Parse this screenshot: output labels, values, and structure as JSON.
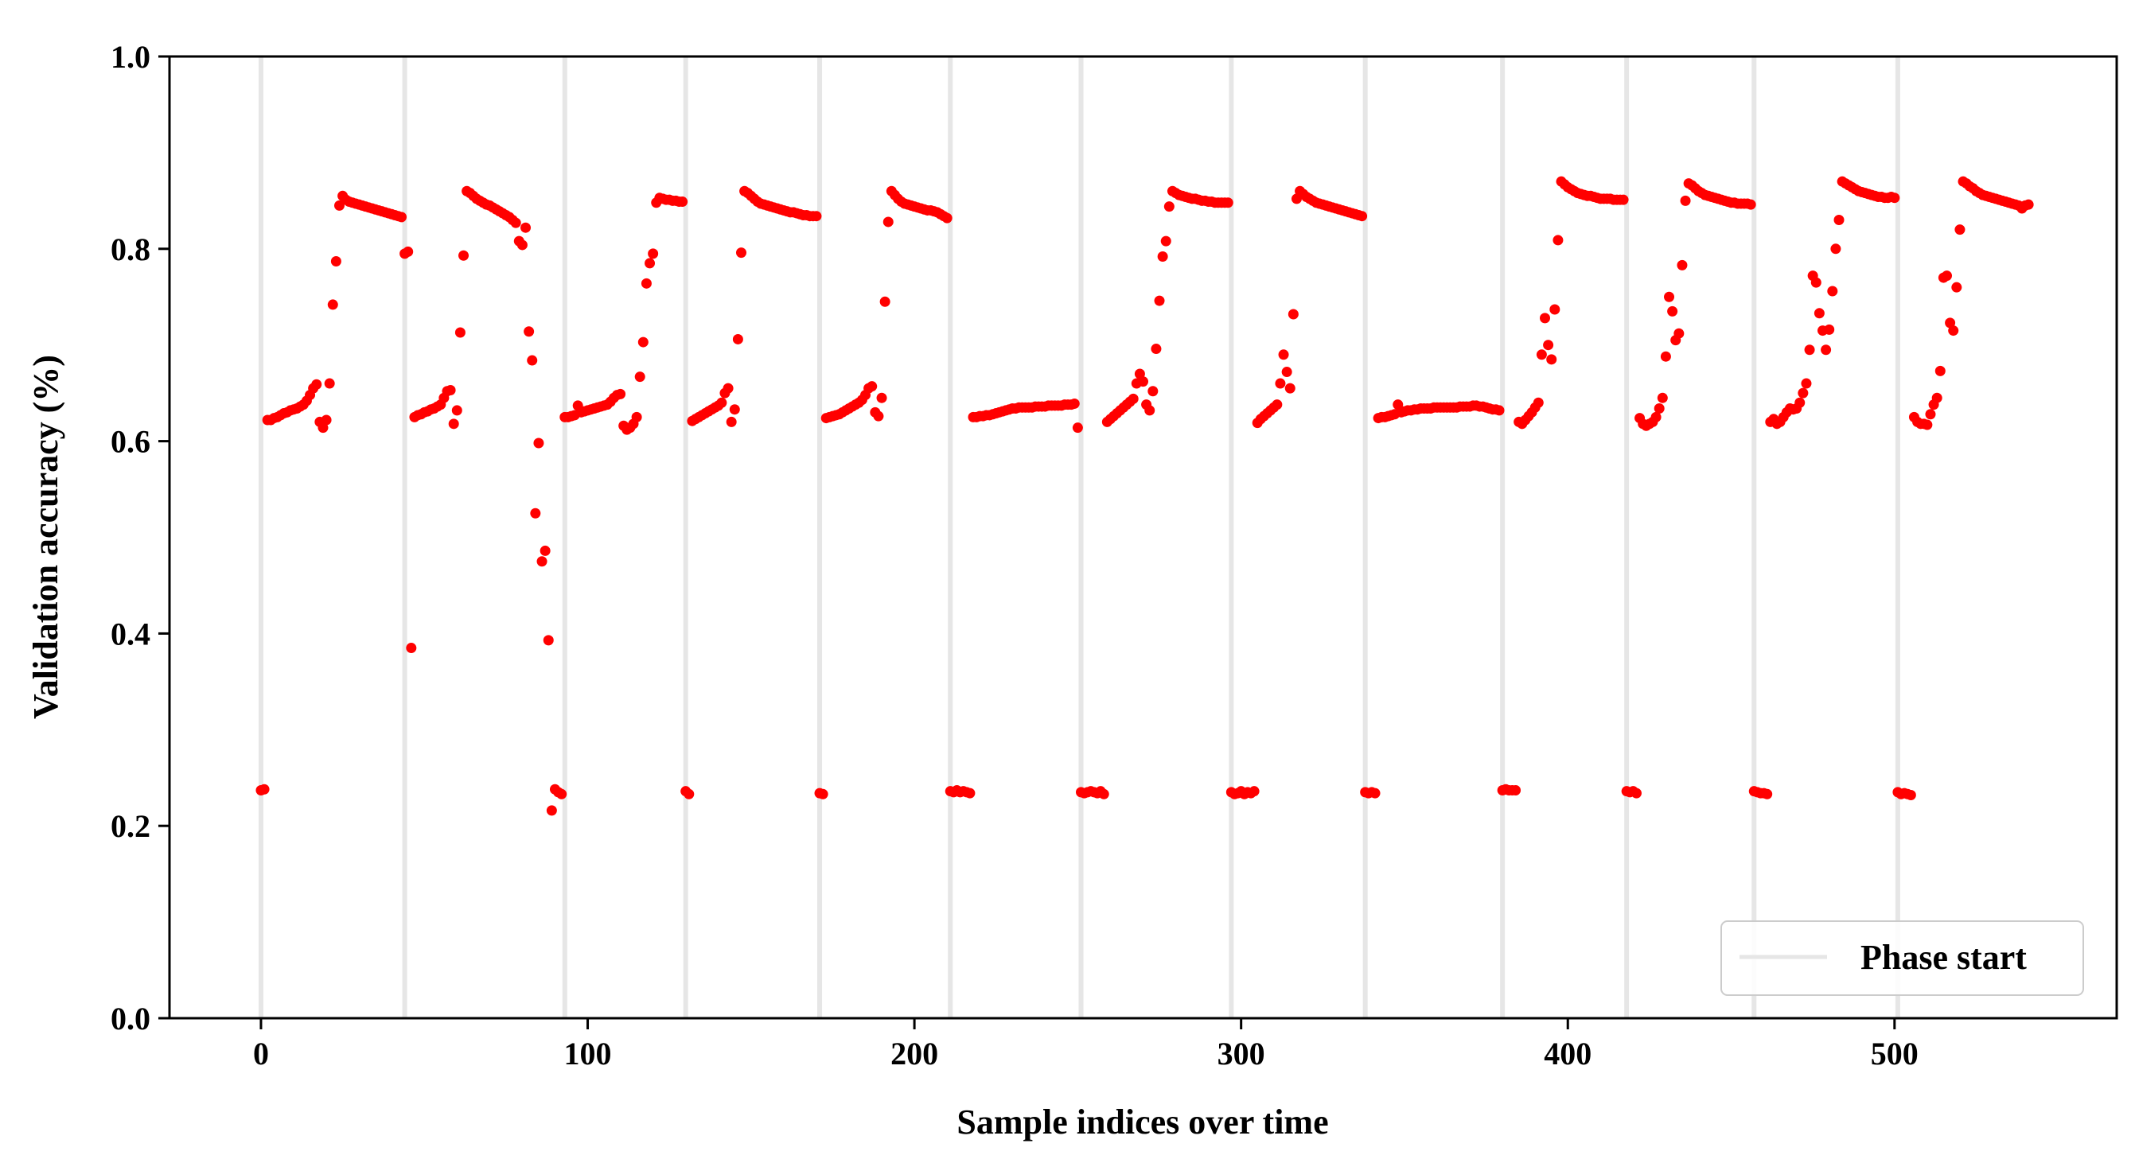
{
  "chart_data": {
    "type": "scatter",
    "xlabel": "Sample indices over time",
    "ylabel": "Validation accuracy (%)",
    "xlim": [
      -28,
      568
    ],
    "ylim": [
      0.0,
      1.0
    ],
    "xticks": [
      0,
      100,
      200,
      300,
      400,
      500
    ],
    "yticks": [
      0.0,
      0.2,
      0.4,
      0.6,
      0.8,
      1.0
    ],
    "xtick_labels": [
      "0",
      "100",
      "200",
      "300",
      "400",
      "500"
    ],
    "ytick_labels": [
      "0.0",
      "0.2",
      "0.4",
      "0.6",
      "0.8",
      "1.0"
    ],
    "grid": false,
    "legend": {
      "placement": "bottom-right",
      "entries": [
        "Phase start"
      ]
    },
    "colors": {
      "points": "#ff0000",
      "phase_lines": "#e6e6e6",
      "axes": "#000000"
    },
    "phase_starts": [
      0,
      44,
      93,
      130,
      171,
      211,
      251,
      297,
      338,
      380,
      418,
      457,
      501
    ],
    "series": [
      {
        "marker": "point",
        "x": [
          0,
          1,
          2,
          3,
          4,
          5,
          6,
          7,
          8,
          9,
          10,
          11,
          12,
          13,
          14,
          15,
          16,
          17,
          18,
          19,
          20,
          21,
          22,
          23,
          24,
          25,
          26,
          27,
          28,
          29,
          30,
          31,
          32,
          33,
          34,
          35,
          36,
          37,
          38,
          39,
          40,
          41,
          42,
          43,
          44,
          45,
          46,
          47,
          48,
          49,
          50,
          51,
          52,
          53,
          54,
          55,
          56,
          57,
          58,
          59,
          60,
          61,
          62,
          63,
          64,
          65,
          66,
          67,
          68,
          69,
          70,
          71,
          72,
          73,
          74,
          75,
          76,
          77,
          78,
          79,
          80,
          81,
          82,
          83,
          84,
          85,
          86,
          87,
          88,
          89,
          90,
          91,
          92,
          93,
          94,
          95,
          96,
          97,
          98,
          99,
          100,
          101,
          102,
          103,
          104,
          105,
          106,
          107,
          108,
          109,
          110,
          111,
          112,
          113,
          114,
          115,
          116,
          117,
          118,
          119,
          120,
          121,
          122,
          123,
          124,
          125,
          126,
          127,
          128,
          129,
          130,
          131,
          132,
          133,
          134,
          135,
          136,
          137,
          138,
          139,
          140,
          141,
          142,
          143,
          144,
          145,
          146,
          147,
          148,
          149,
          150,
          151,
          152,
          153,
          154,
          155,
          156,
          157,
          158,
          159,
          160,
          161,
          162,
          163,
          164,
          165,
          166,
          167,
          168,
          169,
          170,
          171,
          172,
          173,
          174,
          175,
          176,
          177,
          178,
          179,
          180,
          181,
          182,
          183,
          184,
          185,
          186,
          187,
          188,
          189,
          190,
          191,
          192,
          193,
          194,
          195,
          196,
          197,
          198,
          199,
          200,
          201,
          202,
          203,
          204,
          205,
          206,
          207,
          208,
          209,
          210,
          211,
          212,
          213,
          214,
          215,
          216,
          217,
          218,
          219,
          220,
          221,
          222,
          223,
          224,
          225,
          226,
          227,
          228,
          229,
          230,
          231,
          232,
          233,
          234,
          235,
          236,
          237,
          238,
          239,
          240,
          241,
          242,
          243,
          244,
          245,
          246,
          247,
          248,
          249,
          250,
          251,
          252,
          253,
          254,
          255,
          256,
          257,
          258,
          259,
          260,
          261,
          262,
          263,
          264,
          265,
          266,
          267,
          268,
          269,
          270,
          271,
          272,
          273,
          274,
          275,
          276,
          277,
          278,
          279,
          280,
          281,
          282,
          283,
          284,
          285,
          286,
          287,
          288,
          289,
          290,
          291,
          292,
          293,
          294,
          295,
          296,
          297,
          298,
          299,
          300,
          301,
          302,
          303,
          304,
          305,
          306,
          307,
          308,
          309,
          310,
          311,
          312,
          313,
          314,
          315,
          316,
          317,
          318,
          319,
          320,
          321,
          322,
          323,
          324,
          325,
          326,
          327,
          328,
          329,
          330,
          331,
          332,
          333,
          334,
          335,
          336,
          337,
          338,
          339,
          340,
          341,
          342,
          343,
          344,
          345,
          346,
          347,
          348,
          349,
          350,
          351,
          352,
          353,
          354,
          355,
          356,
          357,
          358,
          359,
          360,
          361,
          362,
          363,
          364,
          365,
          366,
          367,
          368,
          369,
          370,
          371,
          372,
          373,
          374,
          375,
          376,
          377,
          378,
          379,
          380,
          381,
          382,
          383,
          384,
          385,
          386,
          387,
          388,
          389,
          390,
          391,
          392,
          393,
          394,
          395,
          396,
          397,
          398,
          399,
          400,
          401,
          402,
          403,
          404,
          405,
          406,
          407,
          408,
          409,
          410,
          411,
          412,
          413,
          414,
          415,
          416,
          417,
          418,
          419,
          420,
          421,
          422,
          423,
          424,
          425,
          426,
          427,
          428,
          429,
          430,
          431,
          432,
          433,
          434,
          435,
          436,
          437,
          438,
          439,
          440,
          441,
          442,
          443,
          444,
          445,
          446,
          447,
          448,
          449,
          450,
          451,
          452,
          453,
          454,
          455,
          456,
          457,
          458,
          459,
          460,
          461,
          462,
          463,
          464,
          465,
          466,
          467,
          468,
          469,
          470,
          471,
          472,
          473,
          474,
          475,
          476,
          477,
          478,
          479,
          480,
          481,
          482,
          483,
          484,
          485,
          486,
          487,
          488,
          489,
          490,
          491,
          492,
          493,
          494,
          495,
          496,
          497,
          498,
          499,
          500,
          501,
          502,
          503,
          504,
          505,
          506,
          507,
          508,
          509,
          510,
          511,
          512,
          513,
          514,
          515,
          516,
          517,
          518,
          519,
          520,
          521,
          522,
          523,
          524,
          525,
          526,
          527,
          528,
          529,
          530,
          531,
          532,
          533,
          534,
          535,
          536,
          537,
          538,
          539,
          540,
          541
        ],
        "y": [
          0.237,
          0.238,
          0.622,
          0.622,
          0.624,
          0.625,
          0.627,
          0.629,
          0.63,
          0.632,
          0.633,
          0.634,
          0.636,
          0.638,
          0.642,
          0.648,
          0.655,
          0.659,
          0.62,
          0.614,
          0.622,
          0.66,
          0.742,
          0.787,
          0.845,
          0.855,
          0.851,
          0.849,
          0.848,
          0.847,
          0.846,
          0.845,
          0.844,
          0.843,
          0.842,
          0.841,
          0.84,
          0.839,
          0.838,
          0.837,
          0.836,
          0.835,
          0.834,
          0.833,
          0.795,
          0.797,
          0.385,
          0.625,
          0.627,
          0.628,
          0.63,
          0.631,
          0.633,
          0.634,
          0.636,
          0.638,
          0.645,
          0.652,
          0.653,
          0.618,
          0.632,
          0.713,
          0.793,
          0.86,
          0.858,
          0.855,
          0.852,
          0.85,
          0.848,
          0.846,
          0.845,
          0.843,
          0.841,
          0.839,
          0.837,
          0.835,
          0.833,
          0.83,
          0.827,
          0.808,
          0.804,
          0.822,
          0.714,
          0.684,
          0.525,
          0.598,
          0.475,
          0.486,
          0.393,
          0.216,
          0.238,
          0.235,
          0.233,
          0.625,
          0.625,
          0.626,
          0.627,
          0.637,
          0.63,
          0.631,
          0.632,
          0.633,
          0.634,
          0.635,
          0.636,
          0.637,
          0.638,
          0.641,
          0.645,
          0.648,
          0.649,
          0.616,
          0.612,
          0.614,
          0.618,
          0.625,
          0.667,
          0.703,
          0.764,
          0.785,
          0.795,
          0.848,
          0.853,
          0.852,
          0.851,
          0.851,
          0.85,
          0.85,
          0.849,
          0.849,
          0.236,
          0.233,
          0.621,
          0.623,
          0.625,
          0.627,
          0.629,
          0.631,
          0.633,
          0.635,
          0.637,
          0.64,
          0.65,
          0.655,
          0.62,
          0.633,
          0.706,
          0.796,
          0.86,
          0.858,
          0.855,
          0.852,
          0.849,
          0.847,
          0.846,
          0.845,
          0.844,
          0.843,
          0.842,
          0.841,
          0.84,
          0.839,
          0.838,
          0.838,
          0.837,
          0.836,
          0.835,
          0.835,
          0.834,
          0.834,
          0.834,
          0.234,
          0.233,
          0.624,
          0.625,
          0.626,
          0.627,
          0.628,
          0.63,
          0.632,
          0.634,
          0.636,
          0.638,
          0.64,
          0.643,
          0.648,
          0.655,
          0.657,
          0.63,
          0.626,
          0.645,
          0.745,
          0.828,
          0.86,
          0.856,
          0.852,
          0.849,
          0.847,
          0.846,
          0.845,
          0.844,
          0.843,
          0.842,
          0.841,
          0.84,
          0.84,
          0.839,
          0.838,
          0.836,
          0.834,
          0.832,
          0.236,
          0.235,
          0.237,
          0.235,
          0.236,
          0.235,
          0.234,
          0.625,
          0.625,
          0.626,
          0.626,
          0.627,
          0.627,
          0.628,
          0.629,
          0.63,
          0.631,
          0.632,
          0.633,
          0.634,
          0.634,
          0.635,
          0.635,
          0.635,
          0.635,
          0.635,
          0.636,
          0.636,
          0.636,
          0.636,
          0.637,
          0.637,
          0.637,
          0.637,
          0.637,
          0.638,
          0.638,
          0.638,
          0.639,
          0.614,
          0.235,
          0.234,
          0.235,
          0.236,
          0.235,
          0.234,
          0.236,
          0.233,
          0.62,
          0.623,
          0.626,
          0.629,
          0.632,
          0.635,
          0.638,
          0.641,
          0.644,
          0.66,
          0.67,
          0.662,
          0.638,
          0.632,
          0.652,
          0.696,
          0.746,
          0.792,
          0.808,
          0.844,
          0.86,
          0.858,
          0.856,
          0.855,
          0.854,
          0.853,
          0.852,
          0.852,
          0.851,
          0.85,
          0.85,
          0.849,
          0.849,
          0.848,
          0.848,
          0.848,
          0.848,
          0.848,
          0.235,
          0.233,
          0.234,
          0.236,
          0.233,
          0.235,
          0.234,
          0.236,
          0.619,
          0.623,
          0.626,
          0.629,
          0.632,
          0.635,
          0.638,
          0.66,
          0.69,
          0.672,
          0.655,
          0.732,
          0.852,
          0.86,
          0.857,
          0.854,
          0.852,
          0.85,
          0.848,
          0.847,
          0.846,
          0.845,
          0.844,
          0.843,
          0.842,
          0.841,
          0.84,
          0.839,
          0.838,
          0.837,
          0.836,
          0.835,
          0.834,
          0.235,
          0.234,
          0.235,
          0.234,
          0.624,
          0.625,
          0.625,
          0.626,
          0.627,
          0.628,
          0.638,
          0.63,
          0.631,
          0.632,
          0.632,
          0.633,
          0.633,
          0.634,
          0.634,
          0.634,
          0.634,
          0.635,
          0.635,
          0.635,
          0.635,
          0.635,
          0.635,
          0.635,
          0.635,
          0.636,
          0.636,
          0.636,
          0.636,
          0.637,
          0.637,
          0.636,
          0.636,
          0.635,
          0.634,
          0.633,
          0.633,
          0.632,
          0.237,
          0.238,
          0.237,
          0.237,
          0.237,
          0.62,
          0.618,
          0.622,
          0.626,
          0.63,
          0.635,
          0.64,
          0.69,
          0.728,
          0.7,
          0.685,
          0.737,
          0.809,
          0.87,
          0.867,
          0.864,
          0.862,
          0.86,
          0.858,
          0.857,
          0.856,
          0.855,
          0.855,
          0.854,
          0.853,
          0.852,
          0.852,
          0.852,
          0.852,
          0.851,
          0.851,
          0.851,
          0.851,
          0.236,
          0.235,
          0.236,
          0.234,
          0.624,
          0.618,
          0.616,
          0.618,
          0.62,
          0.625,
          0.634,
          0.645,
          0.688,
          0.75,
          0.735,
          0.705,
          0.712,
          0.783,
          0.85,
          0.868,
          0.866,
          0.863,
          0.86,
          0.858,
          0.856,
          0.855,
          0.854,
          0.853,
          0.852,
          0.851,
          0.85,
          0.849,
          0.848,
          0.848,
          0.847,
          0.847,
          0.847,
          0.847,
          0.846,
          0.236,
          0.235,
          0.234,
          0.234,
          0.233,
          0.62,
          0.623,
          0.618,
          0.62,
          0.625,
          0.63,
          0.634,
          0.633,
          0.634,
          0.64,
          0.65,
          0.66,
          0.695,
          0.772,
          0.765,
          0.733,
          0.715,
          0.695,
          0.716,
          0.756,
          0.8,
          0.83,
          0.87,
          0.868,
          0.866,
          0.864,
          0.862,
          0.86,
          0.859,
          0.858,
          0.857,
          0.856,
          0.855,
          0.854,
          0.854,
          0.853,
          0.853,
          0.854,
          0.853,
          0.235,
          0.233,
          0.234,
          0.233,
          0.232,
          0.625,
          0.62,
          0.618,
          0.618,
          0.617,
          0.628,
          0.638,
          0.645,
          0.673,
          0.77,
          0.772,
          0.723,
          0.715,
          0.76,
          0.82,
          0.87,
          0.868,
          0.865,
          0.863,
          0.86,
          0.858,
          0.856,
          0.855,
          0.854,
          0.853,
          0.852,
          0.851,
          0.85,
          0.849,
          0.848,
          0.847,
          0.846,
          0.845,
          0.842,
          0.845,
          0.846
        ]
      }
    ]
  }
}
